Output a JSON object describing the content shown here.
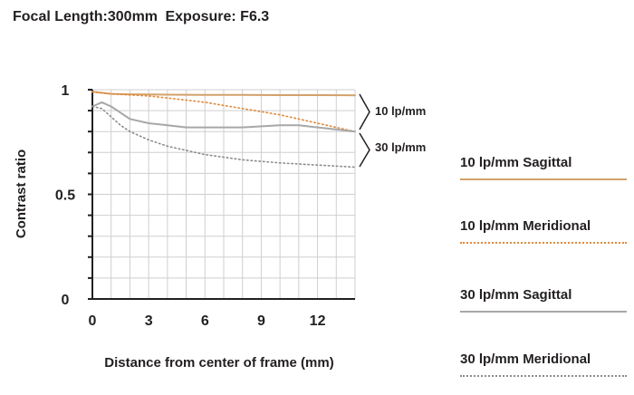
{
  "header": {
    "focal": "Focal Length:300mm",
    "exposure": "Exposure: F6.3"
  },
  "chart_data": {
    "type": "line",
    "xlabel": "Distance from center of frame (mm)",
    "ylabel": "Contrast ratio",
    "xlim": [
      0,
      14
    ],
    "ylim": [
      0,
      1
    ],
    "xticks": [
      0,
      3,
      6,
      9,
      12
    ],
    "yticks": [
      0,
      0.5,
      1
    ],
    "grid": true,
    "legend_position": "right",
    "brackets": [
      "10 lp/mm",
      "30 lp/mm"
    ],
    "series": [
      {
        "name": "10 lp/mm Sagittal",
        "color": "#d4a06a",
        "style": "solid",
        "x": [
          0,
          1,
          2,
          3,
          4,
          6,
          8,
          10,
          12,
          14
        ],
        "y": [
          0.99,
          0.98,
          0.978,
          0.977,
          0.976,
          0.975,
          0.975,
          0.974,
          0.974,
          0.973
        ]
      },
      {
        "name": "10 lp/mm Meridional",
        "color": "#e08a3c",
        "style": "dotted",
        "x": [
          0,
          1,
          2,
          3,
          4,
          6,
          8,
          10,
          12,
          14
        ],
        "y": [
          0.99,
          0.98,
          0.975,
          0.97,
          0.96,
          0.94,
          0.91,
          0.88,
          0.84,
          0.8
        ]
      },
      {
        "name": "30 lp/mm Sagittal",
        "color": "#a7a7a7",
        "style": "solid",
        "x": [
          0,
          0.5,
          1,
          1.5,
          2,
          3,
          4,
          5,
          6,
          8,
          10,
          11,
          12,
          13,
          14
        ],
        "y": [
          0.92,
          0.94,
          0.92,
          0.89,
          0.86,
          0.84,
          0.83,
          0.82,
          0.82,
          0.82,
          0.83,
          0.83,
          0.82,
          0.81,
          0.8
        ]
      },
      {
        "name": "30 lp/mm Meridional",
        "color": "#8c8c8c",
        "style": "dotted",
        "x": [
          0,
          0.5,
          1,
          1.5,
          2,
          3,
          4,
          6,
          8,
          10,
          12,
          14
        ],
        "y": [
          0.92,
          0.91,
          0.87,
          0.83,
          0.8,
          0.76,
          0.73,
          0.69,
          0.665,
          0.65,
          0.64,
          0.63
        ]
      }
    ]
  }
}
